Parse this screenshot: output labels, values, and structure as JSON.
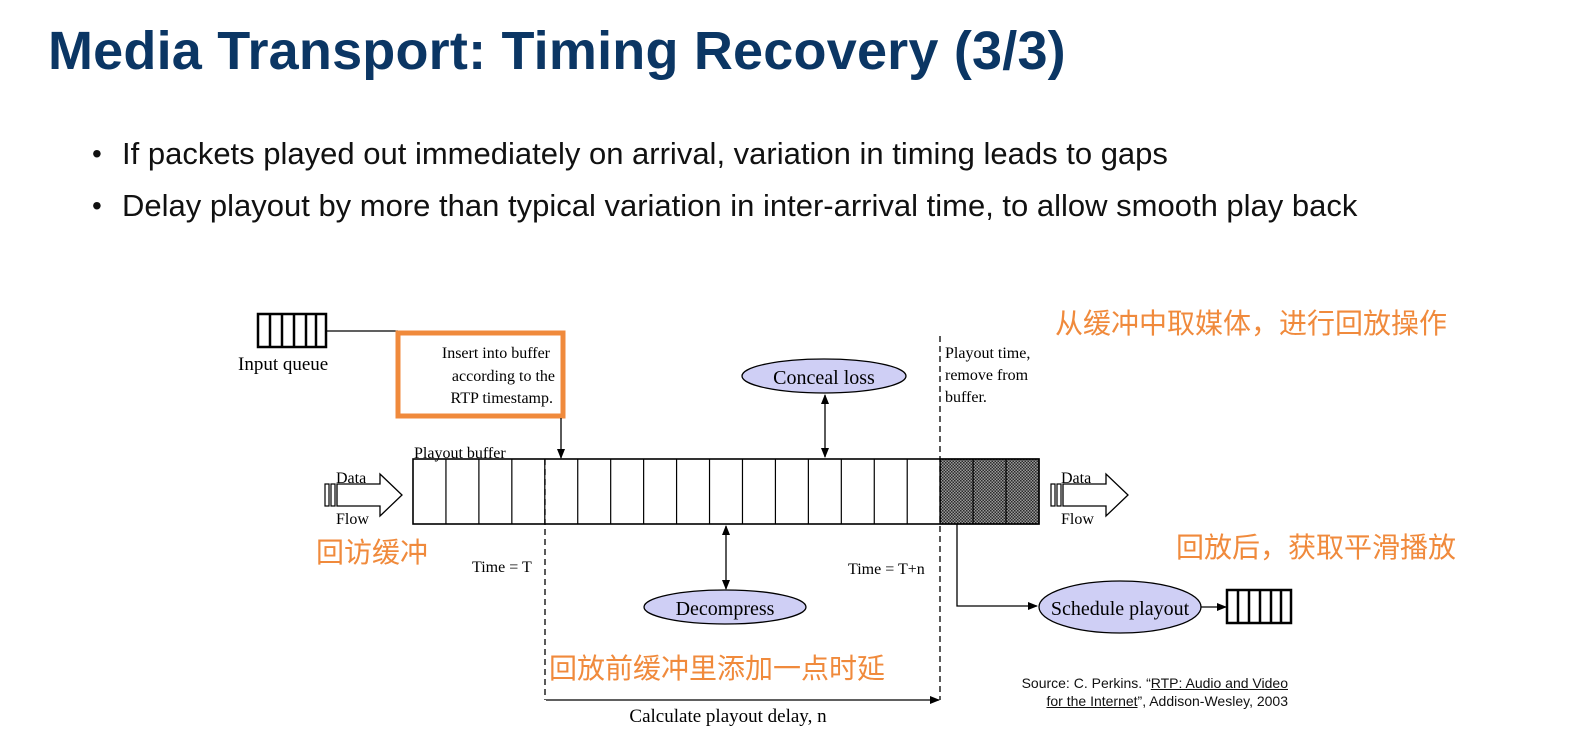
{
  "title": "Media Transport: Timing Recovery (3/3)",
  "bullets": [
    "If packets played out immediately on arrival, variation in timing leads to gaps",
    "Delay playout by more than typical variation in inter-arrival time, to allow smooth play back"
  ],
  "diagram": {
    "input_queue": "Input queue",
    "insert_line1": "Insert into buffer",
    "insert_line2": "according to the",
    "insert_line3": "RTP timestamp.",
    "playout_buffer": "Playout buffer",
    "conceal_loss": "Conceal loss",
    "playout_line1": "Playout time,",
    "playout_line2": "remove from",
    "playout_line3": "buffer.",
    "data_in_1": "Data",
    "data_in_2": "Flow",
    "data_out_1": "Data",
    "data_out_2": "Flow",
    "time_t": "Time = T",
    "time_tn": "Time = T+n",
    "decompress": "Decompress",
    "schedule_playout": "Schedule playout",
    "calc_delay": "Calculate playout delay, n",
    "note_top_right": "从缓冲中取媒体，进行回放操作",
    "note_left": "回访缓冲",
    "note_right": "回放后，获取平滑播放",
    "note_bottom": "回放前缓冲里添加一点时延",
    "highlight_color": "#f08a3c",
    "ellipse_fill": "#cfcff5"
  },
  "source": {
    "prefix": "Source: C. Perkins. “",
    "link1": "RTP: Audio and Video",
    "link2": "for the Internet",
    "suffix": "”, Addison-Wesley, 2003"
  }
}
